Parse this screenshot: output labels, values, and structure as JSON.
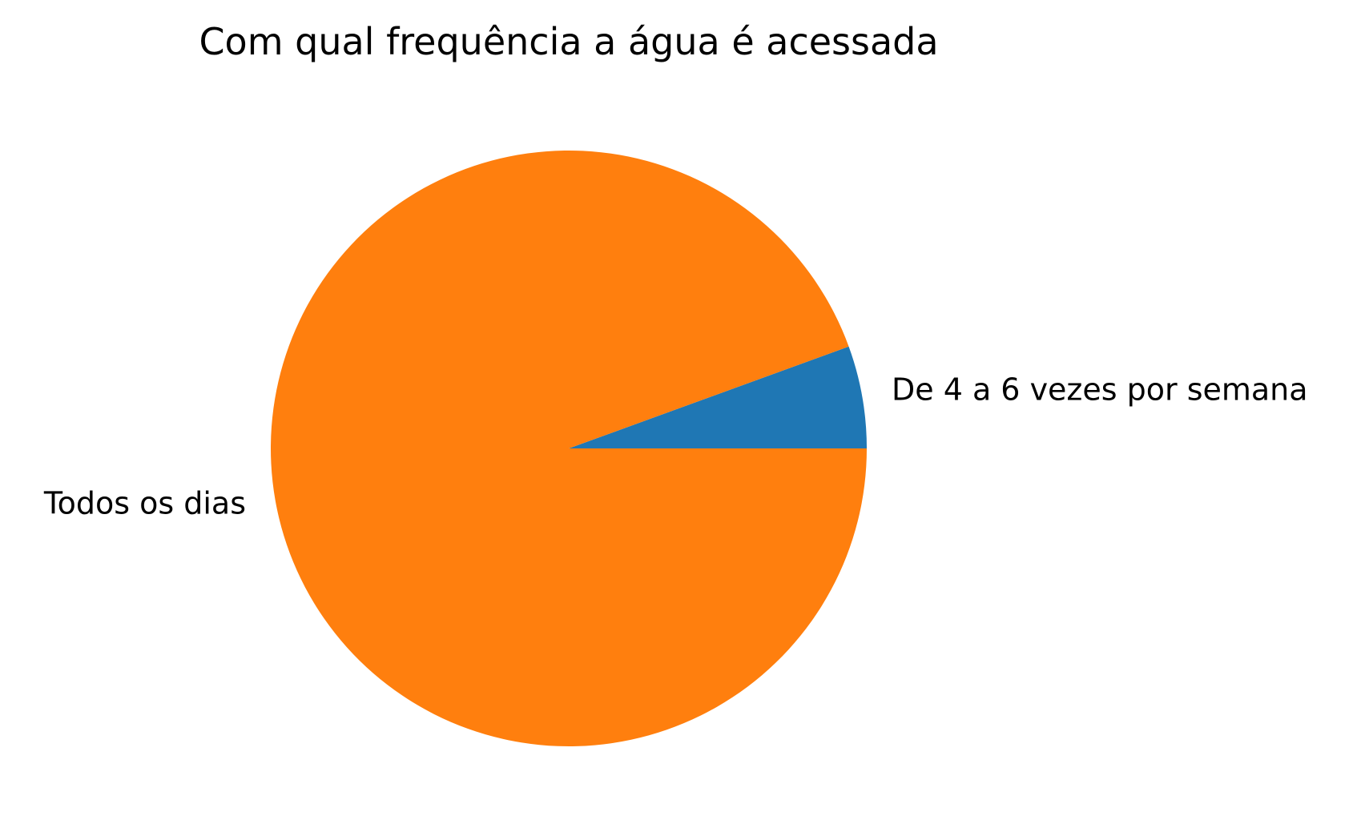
{
  "chart_data": {
    "type": "pie",
    "title": "Com qual frequência a água é acessada",
    "categories": [
      "De 4 a 6 vezes por semana",
      "Todos os dias"
    ],
    "values": [
      1,
      17
    ],
    "colors": [
      "#1f77b4",
      "#ff7f0e"
    ],
    "start_angle_deg": 0,
    "direction": "counterclockwise",
    "legend": "none"
  }
}
